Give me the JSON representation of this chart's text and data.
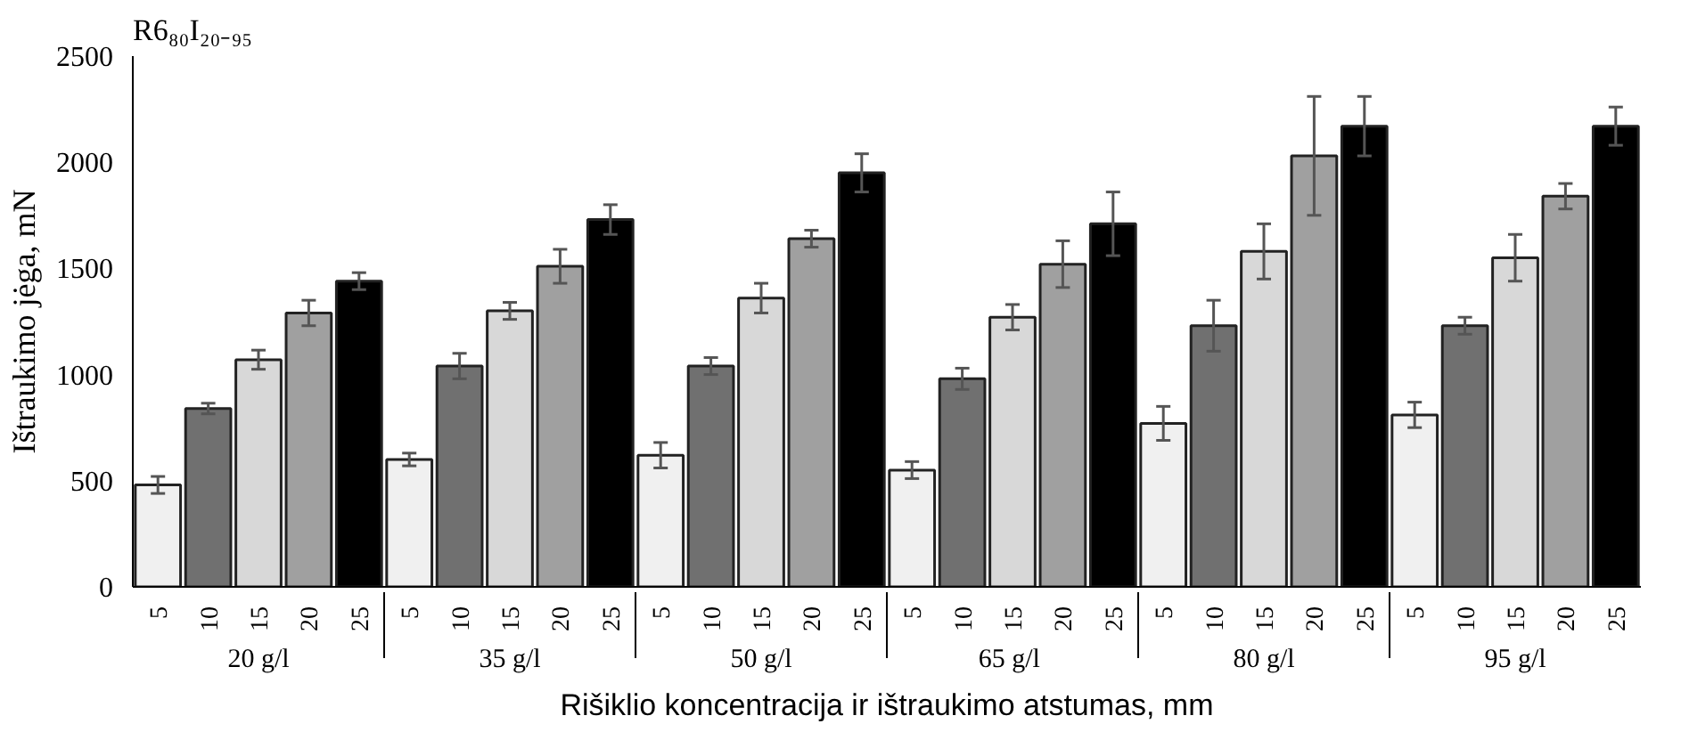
{
  "chart_data": {
    "type": "bar",
    "title": "R6₈₀I₂₀₋₉₅",
    "xlabel": "Rišiklio koncentracija ir ištraukimo atstumas, mm",
    "ylabel": "Ištraukimo jėga, mN",
    "categories": [
      "20 g/l",
      "35 g/l",
      "50 g/l",
      "65  g/l",
      "80 g/l",
      "95 g/l"
    ],
    "series": [
      {
        "name": "5",
        "color": "#f0f0f0",
        "values": [
          480,
          600,
          620,
          550,
          770,
          810
        ],
        "errors": [
          40,
          30,
          60,
          40,
          80,
          60
        ]
      },
      {
        "name": "10",
        "color": "#707070",
        "values": [
          840,
          1040,
          1040,
          980,
          1230,
          1230
        ],
        "errors": [
          25,
          60,
          40,
          50,
          120,
          40
        ]
      },
      {
        "name": "15",
        "color": "#d8d8d8",
        "values": [
          1070,
          1300,
          1360,
          1270,
          1580,
          1550
        ],
        "errors": [
          45,
          40,
          70,
          60,
          130,
          110
        ]
      },
      {
        "name": "20",
        "color": "#a0a0a0",
        "values": [
          1290,
          1510,
          1640,
          1520,
          2030,
          1840
        ],
        "errors": [
          60,
          80,
          40,
          110,
          280,
          60
        ]
      },
      {
        "name": "25",
        "color": "#000000",
        "values": [
          1440,
          1730,
          1950,
          1710,
          2170,
          2170
        ],
        "errors": [
          40,
          70,
          90,
          150,
          140,
          90
        ]
      }
    ],
    "ylim": [
      0,
      2500
    ],
    "yticks": [
      0,
      500,
      1000,
      1500,
      2000,
      2500
    ],
    "grid": false
  }
}
